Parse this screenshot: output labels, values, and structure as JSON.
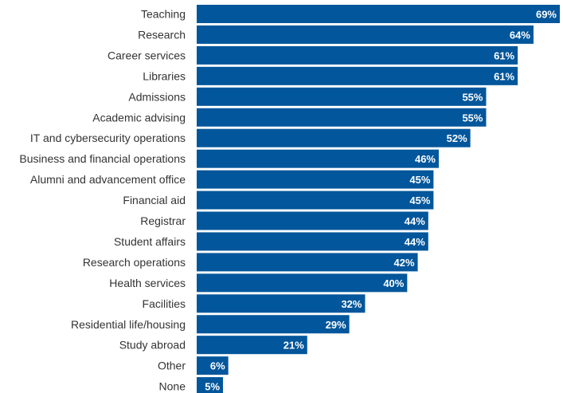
{
  "chart_data": {
    "type": "bar",
    "orientation": "horizontal",
    "categories": [
      "Teaching",
      "Research",
      "Career services",
      "Libraries",
      "Admissions",
      "Academic advising",
      "IT and cybersecurity operations",
      "Business and financial operations",
      "Alumni and advancement office",
      "Financial aid",
      "Registrar",
      "Student affairs",
      "Research operations",
      "Health services",
      "Facilities",
      "Residential life/housing",
      "Study abroad",
      "Other",
      "None"
    ],
    "values": [
      69,
      64,
      61,
      61,
      55,
      55,
      52,
      46,
      45,
      45,
      44,
      44,
      42,
      40,
      32,
      29,
      21,
      6,
      5
    ],
    "value_labels": [
      "69%",
      "64%",
      "61%",
      "61%",
      "55%",
      "55%",
      "52%",
      "46%",
      "45%",
      "45%",
      "44%",
      "44%",
      "42%",
      "40%",
      "32%",
      "29%",
      "21%",
      "6%",
      "5%"
    ],
    "unit": "%",
    "xlim": [
      0,
      69
    ],
    "grid": false,
    "legend": "none",
    "bar_color": "#02569B",
    "label_color": "#333333",
    "value_label_color": "#FFFFFF"
  }
}
